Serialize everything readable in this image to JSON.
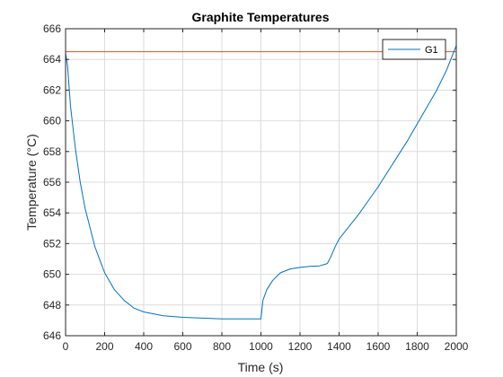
{
  "chart_data": {
    "type": "line",
    "title": "Graphite Temperatures",
    "xlabel": "Time (s)",
    "ylabel": "Temperature (°C)",
    "xlim": [
      0,
      2000
    ],
    "ylim": [
      646,
      666
    ],
    "xticks": [
      0,
      200,
      400,
      600,
      800,
      1000,
      1200,
      1400,
      1600,
      1800,
      2000
    ],
    "yticks": [
      646,
      648,
      650,
      652,
      654,
      656,
      658,
      660,
      662,
      664,
      666
    ],
    "grid": true,
    "legend": {
      "location": "top-right",
      "entries": [
        "G1"
      ]
    },
    "reference_line": {
      "y": 664.5,
      "color": "#D95319"
    },
    "series": [
      {
        "name": "G1",
        "color": "#0072BD",
        "x": [
          0,
          10,
          25,
          50,
          75,
          100,
          150,
          200,
          250,
          300,
          350,
          400,
          500,
          600,
          700,
          800,
          900,
          990,
          1000,
          1010,
          1030,
          1060,
          1100,
          1150,
          1200,
          1250,
          1300,
          1340,
          1360,
          1380,
          1400,
          1450,
          1500,
          1550,
          1600,
          1650,
          1700,
          1750,
          1800,
          1850,
          1900,
          1950,
          2000
        ],
        "values": [
          664.4,
          663.6,
          661.0,
          658.2,
          656.0,
          654.3,
          651.8,
          650.1,
          649.0,
          648.3,
          647.8,
          647.55,
          647.3,
          647.2,
          647.15,
          647.1,
          647.1,
          647.1,
          647.1,
          648.3,
          649.0,
          649.6,
          650.1,
          650.35,
          650.45,
          650.52,
          650.55,
          650.7,
          651.2,
          651.8,
          652.3,
          653.1,
          653.9,
          654.8,
          655.7,
          656.7,
          657.7,
          658.7,
          659.8,
          660.9,
          662.0,
          663.3,
          664.9
        ]
      }
    ]
  }
}
